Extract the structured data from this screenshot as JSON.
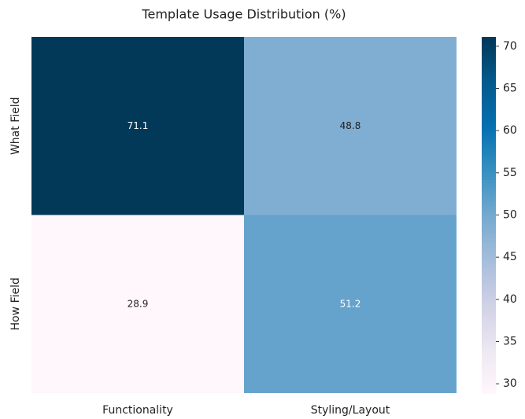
{
  "chart_data": {
    "type": "heatmap",
    "title": "Template Usage Distribution (%)",
    "rows": [
      "What Field",
      "How Field"
    ],
    "columns": [
      "Functionality",
      "Styling/Layout"
    ],
    "values": [
      [
        71.1,
        48.8
      ],
      [
        28.9,
        51.2
      ]
    ],
    "colormap": [
      "#fff7fb",
      "#ece7f2",
      "#d0d1e6",
      "#a6bddb",
      "#74a9cf",
      "#3690c0",
      "#0570b0",
      "#045a8d",
      "#023858"
    ],
    "clim": [
      28.9,
      71.1
    ],
    "cticks": [
      30,
      35,
      40,
      45,
      50,
      55,
      60,
      65,
      70
    ]
  }
}
